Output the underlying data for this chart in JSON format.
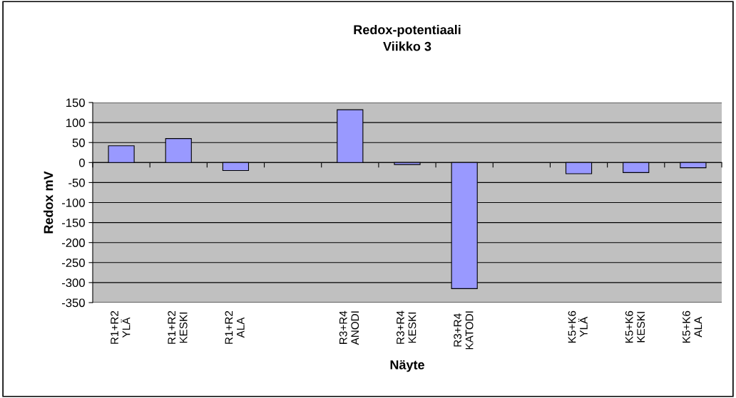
{
  "chart_data": {
    "type": "bar",
    "title": "Redox-potentiaali\nViikko 3",
    "xlabel": "Näyte",
    "ylabel": "Redox mV",
    "categories": [
      "R1+R2\nYLÄ",
      "R1+R2\nKESKI",
      "R1+R2\nALA",
      null,
      "R3+R4\nANODI",
      "R3+R4\nKESKI",
      "R3+R4\nKATODI",
      null,
      "K5+K6\nYLÄ",
      "K5+K6\nKESKI",
      "K5+K6\nALA"
    ],
    "values": [
      42,
      60,
      -20,
      null,
      132,
      -5,
      -315,
      null,
      -28,
      -25,
      -13
    ],
    "color": "#9999ff",
    "ylim": [
      -350,
      150
    ],
    "yticks": [
      -350,
      -300,
      -250,
      -200,
      -150,
      -100,
      -50,
      0,
      50,
      100,
      150
    ],
    "grid": "y"
  }
}
